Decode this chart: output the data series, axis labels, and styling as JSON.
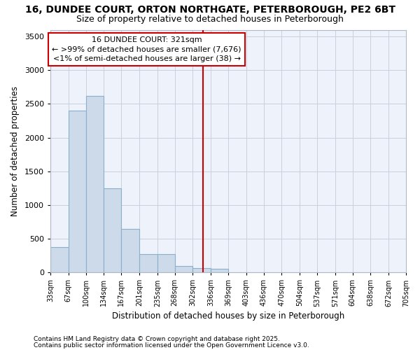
{
  "title_line1": "16, DUNDEE COURT, ORTON NORTHGATE, PETERBOROUGH, PE2 6BT",
  "title_line2": "Size of property relative to detached houses in Peterborough",
  "xlabel": "Distribution of detached houses by size in Peterborough",
  "ylabel": "Number of detached properties",
  "footnote1": "Contains HM Land Registry data © Crown copyright and database right 2025.",
  "footnote2": "Contains public sector information licensed under the Open Government Licence v3.0.",
  "annotation_title": "16 DUNDEE COURT: 321sqm",
  "annotation_line1": "← >99% of detached houses are smaller (7,676)",
  "annotation_line2": "<1% of semi-detached houses are larger (38) →",
  "property_size": 321,
  "bar_color": "#ccdaea",
  "bar_edge_color": "#8ab0cc",
  "vline_color": "#cc0000",
  "annotation_box_color": "#cc0000",
  "background_color": "#ffffff",
  "plot_bg_color": "#eef2fb",
  "bins": [
    33,
    67,
    100,
    134,
    167,
    201,
    235,
    268,
    302,
    336,
    369,
    403,
    436,
    470,
    504,
    537,
    571,
    604,
    638,
    672,
    705
  ],
  "values": [
    380,
    2400,
    2620,
    1250,
    650,
    275,
    275,
    100,
    60,
    50,
    0,
    0,
    0,
    0,
    0,
    0,
    0,
    0,
    0,
    0
  ],
  "ylim": [
    0,
    3600
  ],
  "yticks": [
    0,
    500,
    1000,
    1500,
    2000,
    2500,
    3000,
    3500
  ],
  "grid_color": "#c8d0dc",
  "title1_fontsize": 10,
  "title2_fontsize": 9,
  "xlabel_fontsize": 8.5,
  "ylabel_fontsize": 8.5,
  "xtick_fontsize": 7,
  "ytick_fontsize": 8,
  "annot_fontsize": 8,
  "footnote_fontsize": 6.5
}
